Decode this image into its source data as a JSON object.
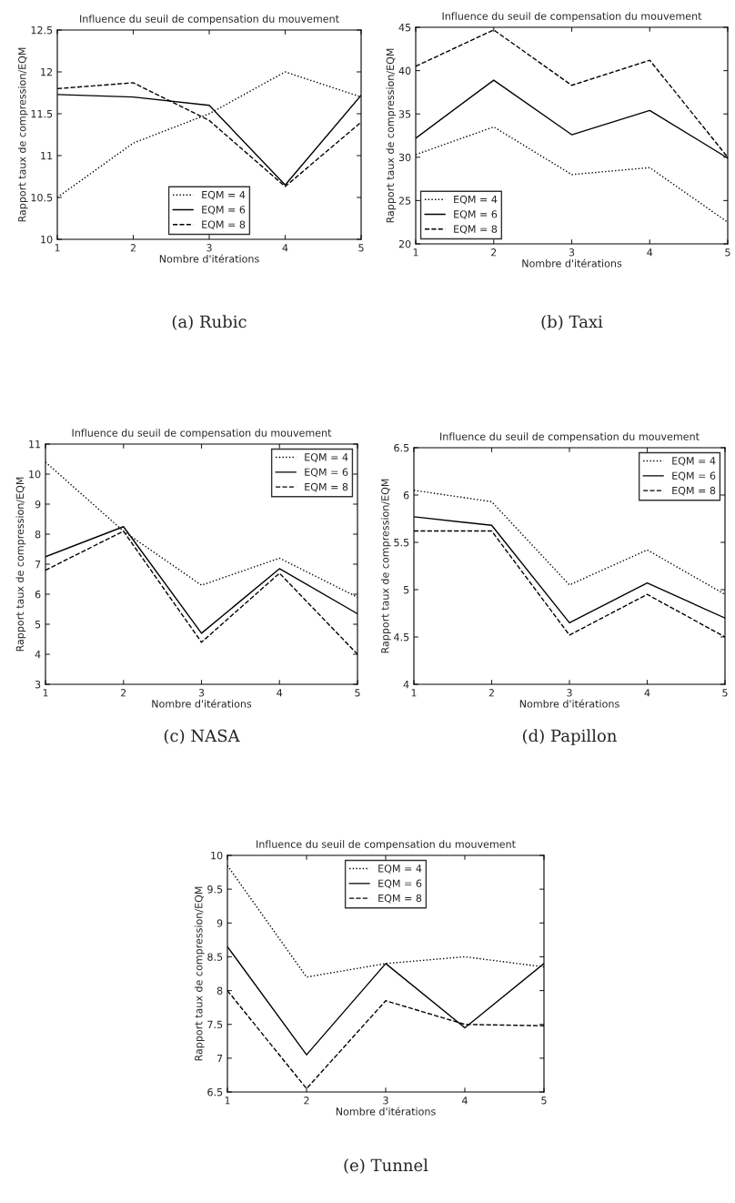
{
  "chart_data": [
    {
      "type": "line",
      "title": "Influence du seuil de compensation du mouvement",
      "xlabel": "Nombre d'itérations",
      "ylabel": "Rapport taux de compression/EQM",
      "x": [
        1,
        2,
        3,
        4,
        5
      ],
      "xlim": [
        1,
        5
      ],
      "xticks": [
        1,
        2,
        3,
        4,
        5
      ],
      "ylim": [
        10,
        12.5
      ],
      "yticks": [
        10,
        10.5,
        11,
        11.5,
        12,
        12.5
      ],
      "legend": "bottom",
      "annotations": [
        "(a) Rubic"
      ],
      "series": [
        {
          "name": "EQM = 4",
          "color": "#000000",
          "line_style": "dotted",
          "values": [
            10.5,
            11.15,
            11.5,
            12.0,
            11.7
          ]
        },
        {
          "name": "EQM = 6",
          "color": "#000000",
          "line_style": "solid",
          "values": [
            11.73,
            11.7,
            11.6,
            10.65,
            11.72
          ]
        },
        {
          "name": "EQM = 8",
          "color": "#000000",
          "line_style": "dashed",
          "values": [
            11.8,
            11.87,
            11.42,
            10.63,
            11.4
          ]
        }
      ]
    },
    {
      "type": "line",
      "title": "Influence du seuil de compensation du mouvement",
      "xlabel": "Nombre d'itérations",
      "ylabel": "Rapport taux de compression/EQM",
      "x": [
        1,
        2,
        3,
        4,
        5
      ],
      "xlim": [
        1,
        5
      ],
      "xticks": [
        1,
        2,
        3,
        4,
        5
      ],
      "ylim": [
        20,
        45
      ],
      "yticks": [
        20,
        25,
        30,
        35,
        40,
        45
      ],
      "legend": "bottom left",
      "annotations": [
        "(b) Taxi"
      ],
      "series": [
        {
          "name": "EQM = 4",
          "color": "#000000",
          "line_style": "dotted",
          "values": [
            30.3,
            33.5,
            28.0,
            28.8,
            22.5
          ]
        },
        {
          "name": "EQM = 6",
          "color": "#000000",
          "line_style": "solid",
          "values": [
            32.2,
            38.9,
            32.6,
            35.4,
            29.9
          ]
        },
        {
          "name": "EQM = 8",
          "color": "#000000",
          "line_style": "dashed",
          "values": [
            40.5,
            44.7,
            38.3,
            41.2,
            30.0
          ]
        }
      ]
    },
    {
      "type": "line",
      "title": "Influence du seuil de compensation du mouvement",
      "xlabel": "Nombre d'itérations",
      "ylabel": "Rapport taux de compression/EQM",
      "x": [
        1,
        2,
        3,
        4,
        5
      ],
      "xlim": [
        1,
        5
      ],
      "xticks": [
        1,
        2,
        3,
        4,
        5
      ],
      "ylim": [
        3,
        11
      ],
      "yticks": [
        3,
        4,
        5,
        6,
        7,
        8,
        9,
        10,
        11
      ],
      "legend": "top right",
      "annotations": [
        "(c) NASA"
      ],
      "series": [
        {
          "name": "EQM = 4",
          "color": "#000000",
          "line_style": "dotted",
          "values": [
            10.4,
            8.1,
            6.3,
            7.2,
            5.9
          ]
        },
        {
          "name": "EQM = 6",
          "color": "#000000",
          "line_style": "solid",
          "values": [
            7.25,
            8.25,
            4.7,
            6.85,
            5.35
          ]
        },
        {
          "name": "EQM = 8",
          "color": "#000000",
          "line_style": "dashed",
          "values": [
            6.8,
            8.1,
            4.4,
            6.7,
            4.0
          ]
        }
      ]
    },
    {
      "type": "line",
      "title": "Influence du seuil de compensation du mouvement",
      "xlabel": "Nombre d'itérations",
      "ylabel": "Rapport taux de compression/EQM",
      "x": [
        1,
        2,
        3,
        4,
        5
      ],
      "xlim": [
        1,
        5
      ],
      "xticks": [
        1,
        2,
        3,
        4,
        5
      ],
      "ylim": [
        4,
        6.5
      ],
      "yticks": [
        4,
        4.5,
        5,
        5.5,
        6,
        6.5
      ],
      "legend": "top right",
      "annotations": [
        "(d) Papillon"
      ],
      "series": [
        {
          "name": "EQM = 4",
          "color": "#000000",
          "line_style": "dotted",
          "values": [
            6.05,
            5.93,
            5.05,
            5.42,
            4.95
          ]
        },
        {
          "name": "EQM = 6",
          "color": "#000000",
          "line_style": "solid",
          "values": [
            5.77,
            5.68,
            4.65,
            5.07,
            4.7
          ]
        },
        {
          "name": "EQM = 8",
          "color": "#000000",
          "line_style": "dashed",
          "values": [
            5.62,
            5.62,
            4.52,
            4.95,
            4.5
          ]
        }
      ]
    },
    {
      "type": "line",
      "title": "Influence du seuil de compensation du mouvement",
      "xlabel": "Nombre d'itérations",
      "ylabel": "Rapport taux de compression/EQM",
      "x": [
        1,
        2,
        3,
        4,
        5
      ],
      "xlim": [
        1,
        5
      ],
      "xticks": [
        1,
        2,
        3,
        4,
        5
      ],
      "ylim": [
        6.5,
        10
      ],
      "yticks": [
        6.5,
        7,
        7.5,
        8,
        8.5,
        9,
        9.5,
        10
      ],
      "legend": "top",
      "annotations": [
        "(e) Tunnel"
      ],
      "series": [
        {
          "name": "EQM = 4",
          "color": "#000000",
          "line_style": "dotted",
          "values": [
            9.85,
            8.2,
            8.4,
            8.5,
            8.35
          ]
        },
        {
          "name": "EQM = 6",
          "color": "#000000",
          "line_style": "solid",
          "values": [
            8.65,
            7.05,
            8.4,
            7.45,
            8.4
          ]
        },
        {
          "name": "EQM = 8",
          "color": "#000000",
          "line_style": "dashed",
          "values": [
            8.0,
            6.55,
            7.85,
            7.5,
            7.48
          ]
        }
      ]
    }
  ]
}
